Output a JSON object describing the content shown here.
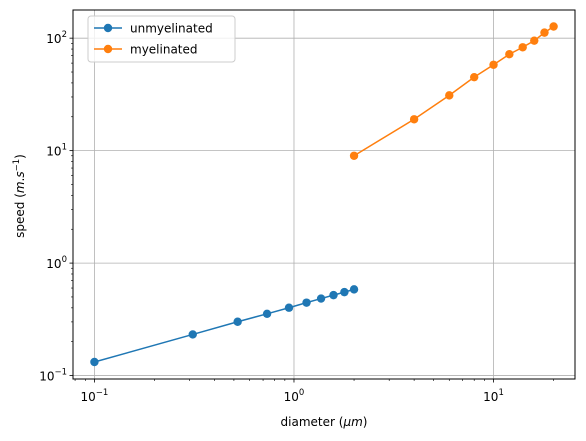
{
  "chart_data": {
    "type": "line",
    "xlabel": "diameter ($\\mu m$)",
    "ylabel": "speed ($m.s^{-1}$)",
    "xscale": "log",
    "yscale": "log",
    "xlim": [
      0.0781,
      25.6
    ],
    "ylim": [
      0.0932,
      178
    ],
    "grid": true,
    "legend": "upper left",
    "x_ticks": [
      {
        "value": 0.1,
        "base": "10",
        "exp": "−1"
      },
      {
        "value": 1,
        "base": "10",
        "exp": "0"
      },
      {
        "value": 10,
        "base": "10",
        "exp": "1"
      }
    ],
    "y_ticks": [
      {
        "value": 0.1,
        "base": "10",
        "exp": "−1"
      },
      {
        "value": 1,
        "base": "10",
        "exp": "0"
      },
      {
        "value": 10,
        "base": "10",
        "exp": "1"
      },
      {
        "value": 100,
        "base": "10",
        "exp": "2"
      }
    ],
    "series": [
      {
        "name": "unmyelinated",
        "color": "#1f77b4",
        "x": [
          0.1,
          0.311,
          0.522,
          0.733,
          0.944,
          1.156,
          1.367,
          1.578,
          1.789,
          2.0
        ],
        "y": [
          0.132,
          0.232,
          0.301,
          0.354,
          0.401,
          0.445,
          0.484,
          0.519,
          0.552,
          0.584
        ]
      },
      {
        "name": "myelinated",
        "color": "#ff7f0e",
        "x": [
          2,
          4,
          6,
          8,
          10,
          12,
          14,
          16,
          18,
          20
        ],
        "y": [
          9.0,
          19.0,
          31.0,
          45.0,
          58.0,
          72.0,
          83.0,
          95.0,
          112.0,
          127.0
        ]
      }
    ]
  }
}
